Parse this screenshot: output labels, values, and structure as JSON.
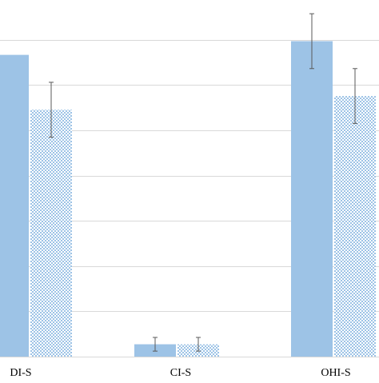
{
  "colors": {
    "series_solid": "#9dc3e6",
    "series_pattern_dot": "#9dc3e6",
    "gridline": "#d9d9d9",
    "error_bar": "#595959",
    "tick_text": "#000000"
  },
  "chart_data": {
    "type": "bar",
    "categories": [
      "DI-S",
      "CI-S",
      "OHI-S"
    ],
    "series": [
      {
        "style": "solid",
        "values": [
          2.2,
          0.09,
          2.3
        ],
        "errors": [
          null,
          0.05,
          0.2
        ]
      },
      {
        "style": "dotted",
        "values": [
          1.8,
          0.09,
          1.9
        ],
        "errors": [
          0.2,
          0.05,
          0.2
        ]
      }
    ],
    "ylim": [
      0,
      2.6
    ],
    "grid_step": 0.33,
    "grid": true,
    "legend": "none",
    "title": "",
    "xlabel": "",
    "ylabel": ""
  }
}
